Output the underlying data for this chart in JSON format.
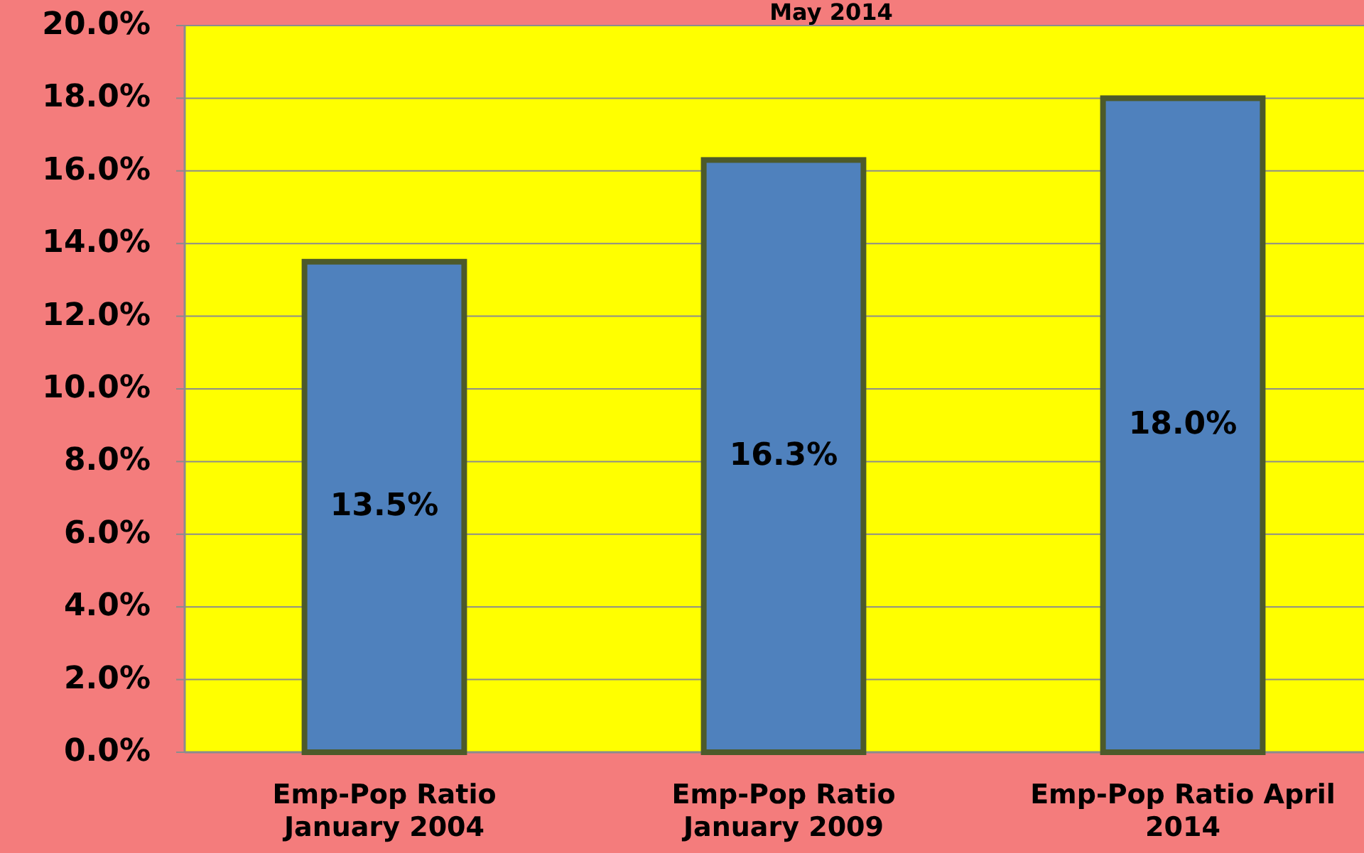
{
  "chart_data": {
    "type": "bar",
    "title": "May 2014",
    "categories": [
      "Emp-Pop Ratio January 2004",
      "Emp-Pop Ratio January 2009",
      "Emp-Pop Ratio April 2014"
    ],
    "values": [
      13.5,
      16.3,
      18.0
    ],
    "color": "#4f81bd",
    "value_labels": [
      "13.5%",
      "16.3%",
      "18.0%"
    ],
    "ylim": [
      0,
      20
    ],
    "yticks": [
      {
        "value": 0,
        "label": "0.0%"
      },
      {
        "value": 2,
        "label": "2.0%"
      },
      {
        "value": 4,
        "label": "4.0%"
      },
      {
        "value": 6,
        "label": "6.0%"
      },
      {
        "value": 8,
        "label": "8.0%"
      },
      {
        "value": 10,
        "label": "10.0%"
      },
      {
        "value": 12,
        "label": "12.0%"
      },
      {
        "value": 14,
        "label": "14.0%"
      },
      {
        "value": 16,
        "label": "16.0%"
      },
      {
        "value": 18,
        "label": "18.0%"
      },
      {
        "value": 20,
        "label": "20.0%"
      }
    ],
    "grid": "y"
  }
}
